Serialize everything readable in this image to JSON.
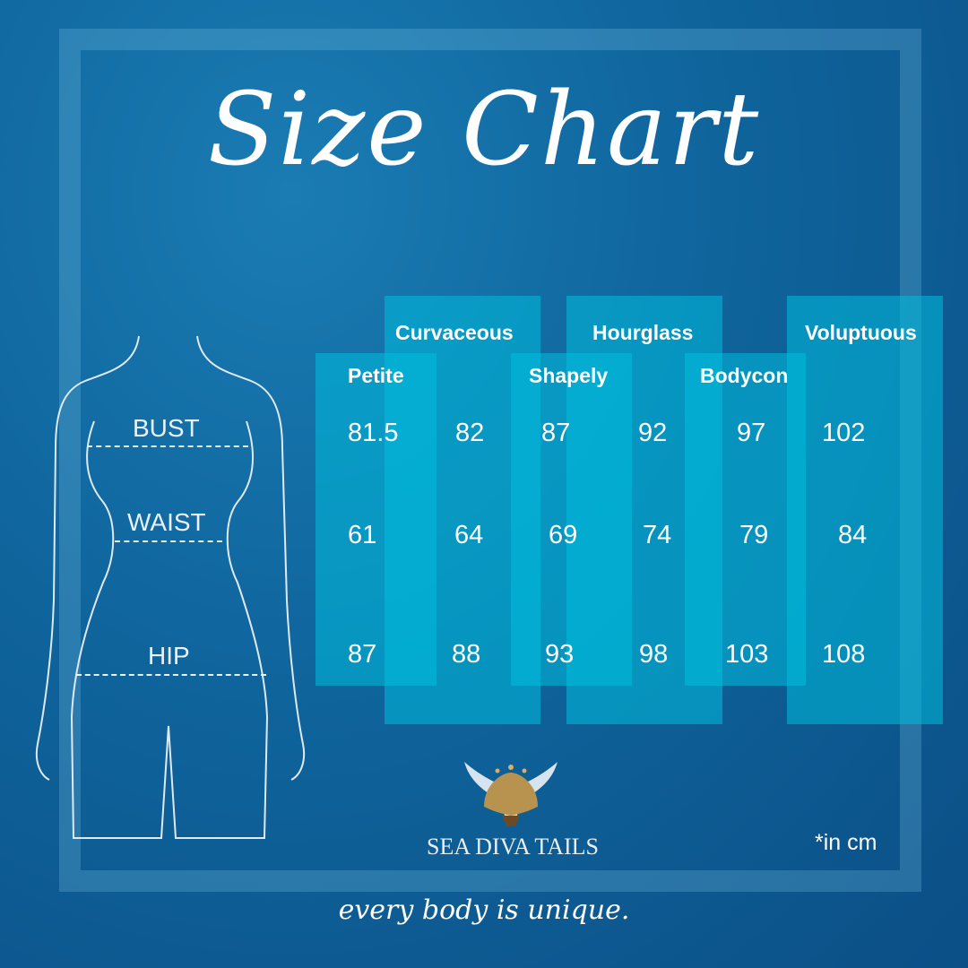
{
  "title": "Size Chart",
  "measurements": [
    "BUST",
    "WAIST",
    "HIP"
  ],
  "sizes": [
    {
      "name": "Petite",
      "bust": "81.5",
      "waist": "61",
      "hip": "87"
    },
    {
      "name": "Curvaceous",
      "bust": "82",
      "waist": "64",
      "hip": "88"
    },
    {
      "name": "Shapely",
      "bust": "87",
      "waist": "69",
      "hip": "93"
    },
    {
      "name": "Hourglass",
      "bust": "92",
      "waist": "74",
      "hip": "98"
    },
    {
      "name": "Bodycon",
      "bust": "97",
      "waist": "79",
      "hip": "103"
    },
    {
      "name": "Voluptuous",
      "bust": "102",
      "waist": "84",
      "hip": "108"
    }
  ],
  "unit_note": "*in cm",
  "brand": "SEA DIVA TAILS",
  "tagline": "every body is unique.",
  "colors": {
    "background": "#0f649c",
    "column": "#00bedc",
    "logo_gold": "#b8924f"
  }
}
